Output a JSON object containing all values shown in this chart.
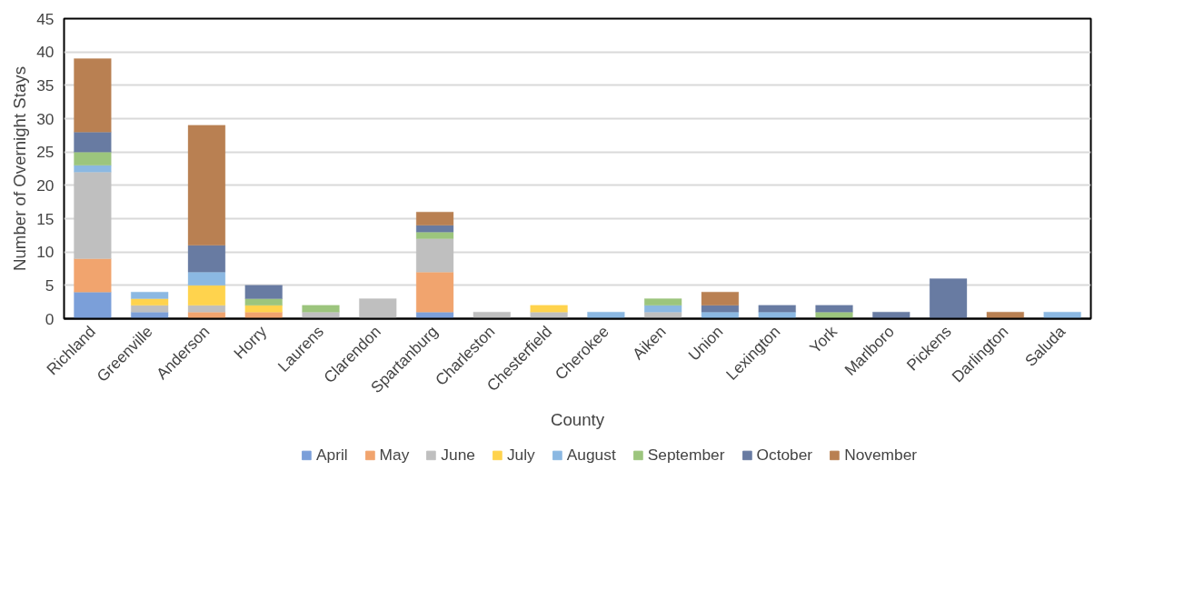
{
  "chart_data": {
    "type": "bar",
    "stacked": true,
    "xlabel": "County",
    "ylabel": "Number of Overnight Stays",
    "categories": [
      "Richland",
      "Greenville",
      "Anderson",
      "Horry",
      "Laurens",
      "Clarendon",
      "Spartanburg",
      "Charleston",
      "Chesterfield",
      "Cherokee",
      "Aiken",
      "Union",
      "Lexington",
      "York",
      "Marlboro",
      "Pickens",
      "Darlington",
      "Saluda"
    ],
    "series": [
      {
        "name": "April",
        "color": "#7b9fd9",
        "values": [
          4,
          1,
          0,
          0,
          0,
          0,
          1,
          0,
          0,
          0,
          0,
          0,
          0,
          0,
          0,
          0,
          0,
          0
        ]
      },
      {
        "name": "May",
        "color": "#f1a46e",
        "values": [
          5,
          0,
          1,
          1,
          0,
          0,
          6,
          0,
          0,
          0,
          0,
          0,
          0,
          0,
          0,
          0,
          0,
          0
        ]
      },
      {
        "name": "June",
        "color": "#bfbfbf",
        "values": [
          13,
          1,
          1,
          0,
          1,
          3,
          5,
          1,
          1,
          0,
          1,
          0,
          0,
          0,
          0,
          0,
          0,
          0
        ]
      },
      {
        "name": "July",
        "color": "#ffd34d",
        "values": [
          0,
          1,
          3,
          1,
          0,
          0,
          0,
          0,
          1,
          0,
          0,
          0,
          0,
          0,
          0,
          0,
          0,
          0
        ]
      },
      {
        "name": "August",
        "color": "#8bb8e2",
        "values": [
          1,
          1,
          2,
          0,
          0,
          0,
          0,
          0,
          0,
          1,
          1,
          1,
          1,
          0,
          0,
          0,
          0,
          1
        ]
      },
      {
        "name": "September",
        "color": "#9cc57d",
        "values": [
          2,
          0,
          0,
          1,
          1,
          0,
          1,
          0,
          0,
          0,
          1,
          0,
          0,
          1,
          0,
          0,
          0,
          0
        ]
      },
      {
        "name": "October",
        "color": "#687ba2",
        "values": [
          3,
          0,
          4,
          2,
          0,
          0,
          1,
          0,
          0,
          0,
          0,
          1,
          1,
          1,
          1,
          6,
          0,
          0
        ]
      },
      {
        "name": "November",
        "color": "#b98052",
        "values": [
          11,
          0,
          18,
          0,
          0,
          0,
          2,
          0,
          0,
          0,
          0,
          2,
          0,
          0,
          0,
          0,
          1,
          0
        ]
      }
    ],
    "ylim": [
      0,
      45
    ],
    "yticks": [
      0,
      5,
      10,
      15,
      20,
      25,
      30,
      35,
      40,
      45
    ],
    "grid": "y",
    "legend": "bottom"
  }
}
